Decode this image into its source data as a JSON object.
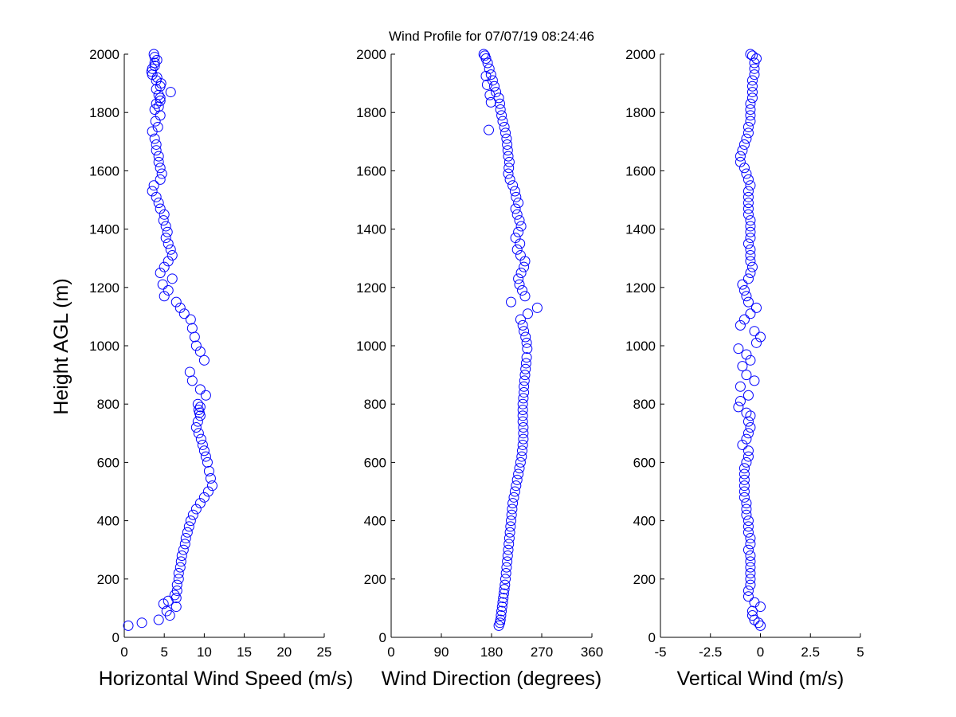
{
  "title": "Wind Profile for  07/07/19 08:24:46",
  "ylabel": "Height AGL (m)",
  "colors": {
    "marker": "#0000ff",
    "axis": "#000000",
    "background": "#ffffff"
  },
  "chart_data": [
    {
      "type": "scatter",
      "xlabel": "Horizontal Wind Speed (m/s)",
      "ylabel": "Height AGL (m)",
      "xlim": [
        0,
        25
      ],
      "ylim": [
        0,
        2000
      ],
      "xticks": [
        0,
        5,
        10,
        15,
        20,
        25
      ],
      "xtick_labels": [
        "0",
        "5",
        "10",
        "15",
        "20",
        "25"
      ],
      "yticks": [
        0,
        200,
        400,
        600,
        800,
        1000,
        1200,
        1400,
        1600,
        1800,
        2000
      ],
      "grid": false,
      "marker": "open-circle",
      "series": [
        {
          "x": [
            0.5,
            2.2,
            4.3,
            5.7,
            5.3,
            6.5,
            4.9,
            5.5,
            6.5,
            6.3,
            6.6,
            6.6,
            6.8,
            6.8,
            7.0,
            7.1,
            7.2,
            7.4,
            7.6,
            7.7,
            7.9,
            8.1,
            8.3,
            8.6,
            9.0,
            9.5,
            10.0,
            10.5,
            11.0,
            10.8,
            10.6,
            10.4,
            10.2,
            10.0,
            9.8,
            9.6,
            9.3,
            9.0,
            9.2,
            9.5,
            9.4,
            9.3,
            9.5,
            9.2,
            10.2,
            9.5,
            8.5,
            8.2,
            10.0,
            9.5,
            9.0,
            8.8,
            8.5,
            8.3,
            7.5,
            7.0,
            6.5,
            5.0,
            5.5,
            4.8,
            6.0,
            4.5,
            5.0,
            5.5,
            6.0,
            5.8,
            5.5,
            5.2,
            5.4,
            5.2,
            4.9,
            5.0,
            4.5,
            4.3,
            4.0,
            3.5,
            3.7,
            4.5,
            4.7,
            4.5,
            4.3,
            4.3,
            4.0,
            4.0,
            3.8,
            3.5,
            4.2,
            3.9,
            4.5,
            3.8,
            4.0,
            4.5,
            5.8,
            4.5,
            4.0,
            3.5,
            3.5,
            3.8,
            3.8,
            3.7,
            4.1,
            3.8,
            3.4,
            4.1,
            4.6,
            4.0,
            4.3,
            4.5,
            4.3
          ],
          "y": [
            40,
            50,
            60,
            75,
            90,
            105,
            115,
            125,
            135,
            145,
            160,
            180,
            200,
            220,
            240,
            260,
            280,
            300,
            320,
            340,
            360,
            380,
            400,
            420,
            440,
            460,
            480,
            500,
            520,
            545,
            570,
            600,
            620,
            640,
            660,
            680,
            700,
            720,
            740,
            760,
            770,
            780,
            790,
            800,
            830,
            850,
            880,
            910,
            950,
            980,
            1000,
            1030,
            1060,
            1090,
            1110,
            1130,
            1150,
            1170,
            1190,
            1210,
            1230,
            1250,
            1270,
            1290,
            1310,
            1330,
            1350,
            1370,
            1390,
            1410,
            1430,
            1450,
            1470,
            1490,
            1510,
            1530,
            1550,
            1570,
            1590,
            1610,
            1630,
            1650,
            1670,
            1690,
            1710,
            1735,
            1750,
            1770,
            1790,
            1810,
            1830,
            1850,
            1870,
            1890,
            1910,
            1930,
            1950,
            1970,
            1990,
            2000,
            1980,
            1960,
            1940,
            1920,
            1900,
            1880,
            1860,
            1840,
            1820
          ]
        }
      ]
    },
    {
      "type": "scatter",
      "xlabel": "Wind Direction (degrees)",
      "ylabel": "",
      "xlim": [
        0,
        360
      ],
      "ylim": [
        0,
        2000
      ],
      "xticks": [
        0,
        90,
        180,
        270,
        360
      ],
      "xtick_labels": [
        "0",
        "90",
        "180",
        "270",
        "360"
      ],
      "yticks": [
        0,
        200,
        400,
        600,
        800,
        1000,
        1200,
        1400,
        1600,
        1800,
        2000
      ],
      "grid": false,
      "marker": "open-circle",
      "series": [
        {
          "x": [
            193,
            195,
            196,
            197,
            198,
            199,
            200,
            201,
            202,
            203,
            204,
            205,
            206,
            207,
            208,
            209,
            210,
            211,
            212,
            213,
            214,
            215,
            216,
            217,
            218,
            220,
            222,
            224,
            226,
            228,
            230,
            232,
            234,
            235,
            236,
            237,
            237,
            237,
            236,
            236,
            236,
            236,
            237,
            238,
            238,
            239,
            240,
            241,
            242,
            243,
            244,
            243,
            241,
            238,
            236,
            232,
            245,
            262,
            215,
            240,
            235,
            230,
            228,
            233,
            238,
            240,
            232,
            226,
            231,
            223,
            228,
            233,
            230,
            226,
            223,
            228,
            224,
            222,
            218,
            213,
            210,
            211,
            212,
            210,
            209,
            208,
            207,
            205,
            203,
            200,
            198,
            196,
            195,
            193,
            188,
            185,
            182,
            179,
            176,
            173,
            170,
            168,
            166,
            170,
            172,
            177,
            179,
            175
          ],
          "y": [
            40,
            50,
            60,
            75,
            90,
            105,
            120,
            135,
            150,
            165,
            180,
            200,
            220,
            240,
            260,
            280,
            300,
            320,
            340,
            360,
            380,
            400,
            420,
            440,
            460,
            480,
            500,
            520,
            540,
            560,
            580,
            600,
            620,
            640,
            660,
            680,
            700,
            720,
            740,
            760,
            780,
            800,
            820,
            840,
            860,
            880,
            900,
            920,
            940,
            960,
            990,
            1010,
            1030,
            1050,
            1070,
            1090,
            1110,
            1130,
            1150,
            1170,
            1190,
            1210,
            1230,
            1250,
            1270,
            1290,
            1310,
            1330,
            1350,
            1370,
            1390,
            1410,
            1430,
            1450,
            1470,
            1490,
            1510,
            1530,
            1550,
            1570,
            1590,
            1610,
            1630,
            1650,
            1670,
            1690,
            1710,
            1730,
            1750,
            1770,
            1790,
            1810,
            1830,
            1850,
            1870,
            1890,
            1910,
            1930,
            1950,
            1970,
            1985,
            1995,
            2000,
            1925,
            1895,
            1860,
            1835,
            1740
          ]
        }
      ]
    },
    {
      "type": "scatter",
      "xlabel": "Vertical Wind (m/s)",
      "ylabel": "",
      "xlim": [
        -5,
        5
      ],
      "ylim": [
        0,
        2000
      ],
      "xticks": [
        -5,
        -2.5,
        0,
        2.5,
        5
      ],
      "xtick_labels": [
        "-5",
        "-2.5",
        "0",
        "2.5",
        "5"
      ],
      "yticks": [
        0,
        200,
        400,
        600,
        800,
        1000,
        1200,
        1400,
        1600,
        1800,
        2000
      ],
      "grid": false,
      "marker": "open-circle",
      "series": [
        {
          "x": [
            0,
            -0.1,
            -0.3,
            -0.4,
            -0.4,
            0,
            -0.3,
            -0.6,
            -0.6,
            -0.5,
            -0.5,
            -0.5,
            -0.5,
            -0.5,
            -0.5,
            -0.6,
            -0.5,
            -0.5,
            -0.6,
            -0.6,
            -0.6,
            -0.7,
            -0.7,
            -0.7,
            -0.8,
            -0.8,
            -0.8,
            -0.8,
            -0.8,
            -0.8,
            -0.7,
            -0.6,
            -0.6,
            -0.9,
            -0.7,
            -0.6,
            -0.5,
            -0.6,
            -0.5,
            -0.7,
            -1.1,
            -1.0,
            -0.6,
            -1.0,
            -0.3,
            -0.7,
            -0.9,
            -0.5,
            -0.7,
            -1.1,
            -0.2,
            0,
            -0.3,
            -1.0,
            -0.8,
            -0.5,
            -0.2,
            -0.6,
            -0.7,
            -0.8,
            -0.9,
            -0.6,
            -0.5,
            -0.4,
            -0.5,
            -0.5,
            -0.5,
            -0.6,
            -0.5,
            -0.5,
            -0.5,
            -0.5,
            -0.6,
            -0.6,
            -0.6,
            -0.6,
            -0.6,
            -0.5,
            -0.6,
            -0.7,
            -0.8,
            -1.0,
            -1.0,
            -0.9,
            -0.8,
            -0.7,
            -0.6,
            -0.6,
            -0.5,
            -0.5,
            -0.5,
            -0.5,
            -0.4,
            -0.4,
            -0.4,
            -0.4,
            -0.3,
            -0.3,
            -0.3,
            -0.2,
            -0.5,
            -0.4
          ],
          "y": [
            40,
            50,
            60,
            75,
            90,
            105,
            120,
            140,
            160,
            180,
            200,
            220,
            240,
            260,
            280,
            300,
            320,
            340,
            360,
            380,
            400,
            420,
            440,
            460,
            480,
            500,
            520,
            540,
            560,
            580,
            600,
            620,
            640,
            660,
            680,
            700,
            720,
            740,
            760,
            770,
            790,
            810,
            830,
            860,
            880,
            900,
            930,
            950,
            970,
            990,
            1010,
            1030,
            1050,
            1070,
            1090,
            1110,
            1130,
            1150,
            1170,
            1190,
            1210,
            1230,
            1250,
            1270,
            1290,
            1310,
            1330,
            1350,
            1370,
            1390,
            1410,
            1430,
            1450,
            1470,
            1490,
            1510,
            1530,
            1550,
            1570,
            1590,
            1610,
            1630,
            1650,
            1670,
            1690,
            1710,
            1730,
            1750,
            1770,
            1790,
            1810,
            1830,
            1850,
            1870,
            1890,
            1910,
            1930,
            1950,
            1970,
            1985,
            2000,
            1995
          ]
        }
      ]
    }
  ]
}
